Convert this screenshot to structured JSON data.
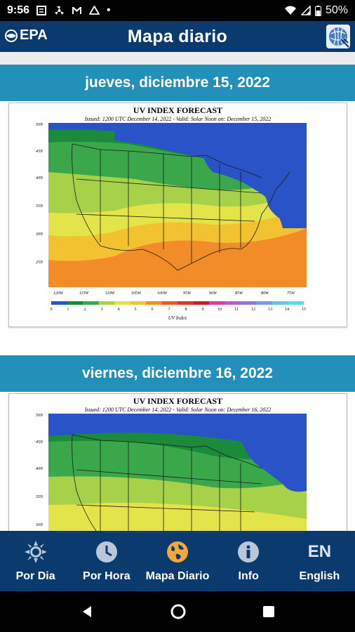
{
  "status": {
    "time": "9:56",
    "battery": "50%"
  },
  "app": {
    "logo_text": "EPA",
    "title": "Mapa diario"
  },
  "days": [
    {
      "date": "jueves, diciembre 15, 2022",
      "map_title": "UV INDEX FORECAST",
      "map_subtitle": "Issued: 1200 UTC December 14, 2022  -  Valid: Solar Noon on: December 15, 2022"
    },
    {
      "date": "viernes, diciembre 16, 2022",
      "map_title": "UV INDEX FORECAST",
      "map_subtitle": "Issued: 1200 UTC December 14, 2022  -  Valid: Solar Noon on: December 16, 2022"
    }
  ],
  "map": {
    "lat_labels": [
      "50N",
      "45N",
      "40N",
      "35N",
      "30N",
      "25N"
    ],
    "lon_labels": [
      "120W",
      "115W",
      "110W",
      "105W",
      "100W",
      "95W",
      "90W",
      "85W",
      "80W",
      "75W"
    ],
    "scale_values": [
      "0",
      "1",
      "2",
      "3",
      "4",
      "5",
      "6",
      "7",
      "8",
      "9",
      "10",
      "11",
      "12",
      "13",
      "14",
      "15"
    ],
    "scale_colors": [
      "#2a53c8",
      "#1b8a3a",
      "#3aa84a",
      "#a8d14a",
      "#e3e34a",
      "#f2c230",
      "#f28c28",
      "#ea5a22",
      "#d63a28",
      "#c8202a",
      "#e03c9a",
      "#b060d0",
      "#8a7ae0",
      "#7a9ae8",
      "#6ac0f0",
      "#5ad8f0"
    ],
    "scale_label": "UV Index"
  },
  "nav": {
    "items": [
      {
        "label": "Por Dia",
        "icon": "sun-icon"
      },
      {
        "label": "Por Hora",
        "icon": "clock-icon"
      },
      {
        "label": "Mapa Diario",
        "icon": "globe-icon"
      },
      {
        "label": "Info",
        "icon": "info-icon"
      },
      {
        "label": "English",
        "icon": "EN"
      }
    ]
  },
  "colors": {
    "app_bar": "#0b3a6e",
    "day_header": "#2290b8",
    "active_icon": "#f2a93b"
  }
}
